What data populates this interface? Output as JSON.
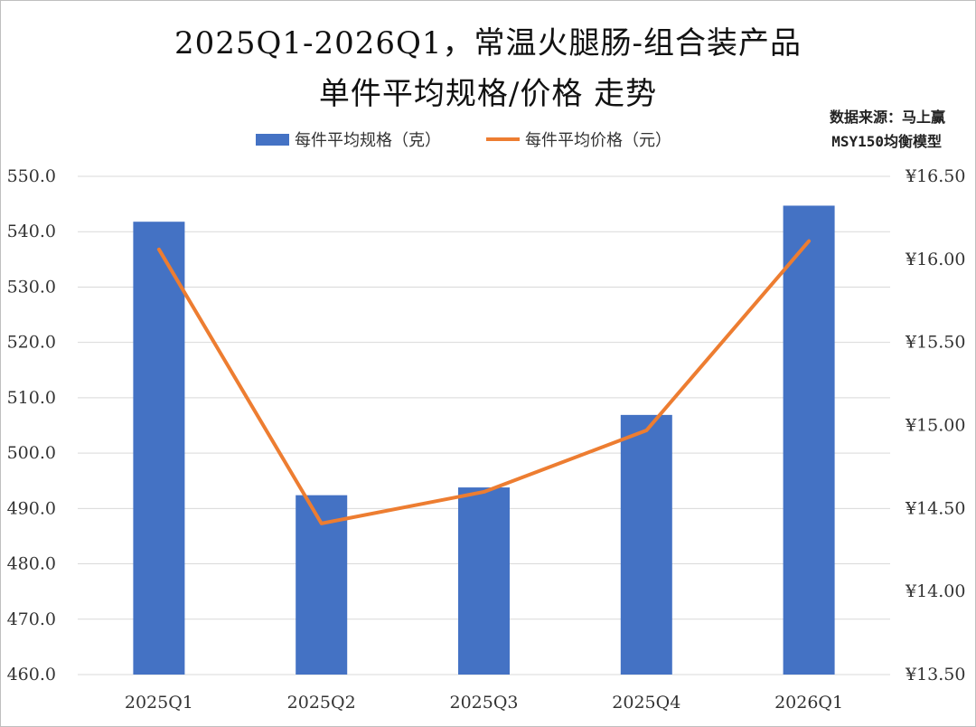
{
  "chart_data": {
    "type": "bar",
    "title_line1": "2025Q1-2026Q1，常温火腿肠-组合装产品",
    "title_line2": "单件平均规格/价格 走势",
    "source_line1": "数据来源：马上赢",
    "source_line2": "MSY150均衡模型",
    "categories": [
      "2025Q1",
      "2025Q2",
      "2025Q3",
      "2025Q4",
      "2026Q1"
    ],
    "series": [
      {
        "name": "每件平均规格（克）",
        "type": "bar",
        "axis": "left",
        "color": "#4472C4",
        "values": [
          541.8,
          492.4,
          493.8,
          506.9,
          544.7
        ]
      },
      {
        "name": "每件平均价格（元）",
        "type": "line",
        "axis": "right",
        "color": "#ED7D31",
        "values": [
          16.06,
          14.41,
          14.6,
          14.97,
          16.11
        ]
      }
    ],
    "y_left": {
      "ylim": [
        460,
        550
      ],
      "ticks": [
        "550.0",
        "540.0",
        "530.0",
        "520.0",
        "510.0",
        "500.0",
        "490.0",
        "480.0",
        "470.0",
        "460.0"
      ]
    },
    "y_right": {
      "ylim": [
        13.5,
        16.5
      ],
      "ticks": [
        "¥16.50",
        "¥16.00",
        "¥15.50",
        "¥15.00",
        "¥14.50",
        "¥14.00",
        "¥13.50"
      ]
    },
    "grid": true,
    "legend_position": "top"
  }
}
